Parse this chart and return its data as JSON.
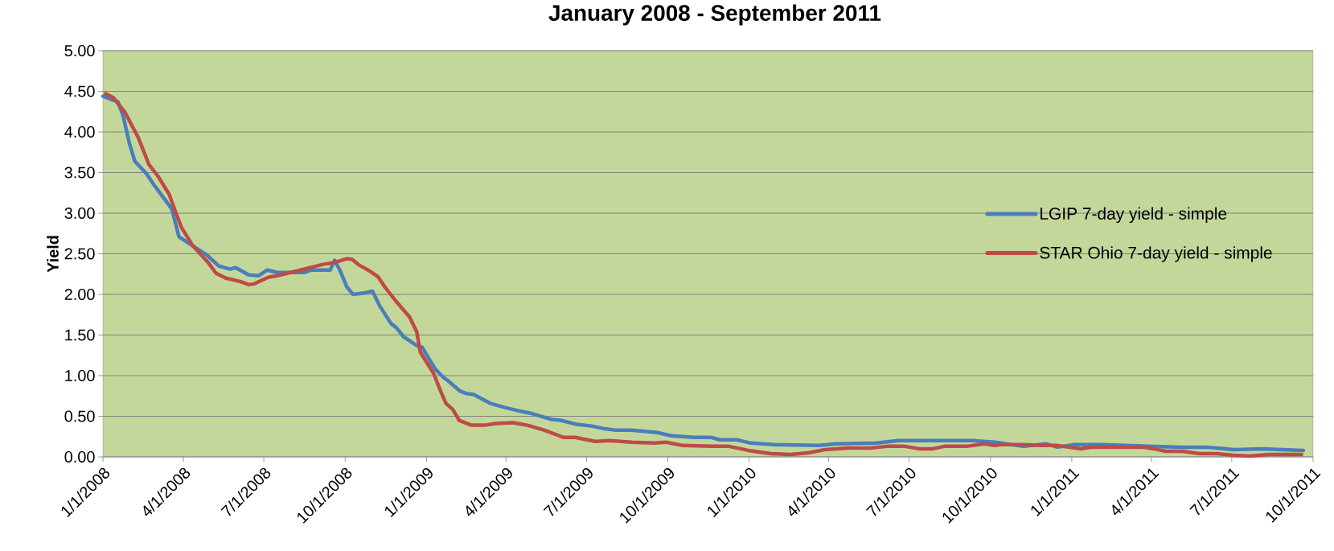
{
  "chart_data": {
    "type": "line",
    "title": "January 2008 - September 2011",
    "ylabel": "Yield",
    "xlim": [
      "2008-01-01",
      "2011-10-01"
    ],
    "xticks": [
      {
        "value": "2008-01-01",
        "label": "1/1/2008"
      },
      {
        "value": "2008-04-01",
        "label": "4/1/2008"
      },
      {
        "value": "2008-07-01",
        "label": "7/1/2008"
      },
      {
        "value": "2008-10-01",
        "label": "10/1/2008"
      },
      {
        "value": "2009-01-01",
        "label": "1/1/2009"
      },
      {
        "value": "2009-04-01",
        "label": "4/1/2009"
      },
      {
        "value": "2009-07-01",
        "label": "7/1/2009"
      },
      {
        "value": "2009-10-01",
        "label": "10/1/2009"
      },
      {
        "value": "2010-01-01",
        "label": "1/1/2010"
      },
      {
        "value": "2010-04-01",
        "label": "4/1/2010"
      },
      {
        "value": "2010-07-01",
        "label": "7/1/2010"
      },
      {
        "value": "2010-10-01",
        "label": "10/1/2010"
      },
      {
        "value": "2011-01-01",
        "label": "1/1/2011"
      },
      {
        "value": "2011-04-01",
        "label": "4/1/2011"
      },
      {
        "value": "2011-07-01",
        "label": "7/1/2011"
      },
      {
        "value": "2011-10-01",
        "label": "10/1/2011"
      }
    ],
    "ylim": [
      0,
      5
    ],
    "yticks": [
      {
        "value": 0,
        "label": "0.00"
      },
      {
        "value": 0.5,
        "label": "0.50"
      },
      {
        "value": 1,
        "label": "1.00"
      },
      {
        "value": 1.5,
        "label": "1.50"
      },
      {
        "value": 2,
        "label": "2.00"
      },
      {
        "value": 2.5,
        "label": "2.50"
      },
      {
        "value": 3,
        "label": "3.00"
      },
      {
        "value": 3.5,
        "label": "3.50"
      },
      {
        "value": 4,
        "label": "4.00"
      },
      {
        "value": 4.5,
        "label": "4.50"
      },
      {
        "value": 5,
        "label": "5.00"
      }
    ],
    "grid": "y",
    "legend": "right",
    "series": [
      {
        "name": "LGIP 7-day yield - simple",
        "color": "#4a7ebb",
        "x": [
          "2008-01-01",
          "2008-01-18",
          "2008-01-24",
          "2008-01-31",
          "2008-02-06",
          "2008-02-19",
          "2008-02-29",
          "2008-03-19",
          "2008-03-27",
          "2008-04-14",
          "2008-04-27",
          "2008-05-11",
          "2008-05-24",
          "2008-05-30",
          "2008-06-14",
          "2008-06-25",
          "2008-07-05",
          "2008-07-16",
          "2008-08-16",
          "2008-08-24",
          "2008-09-14",
          "2008-09-19",
          "2008-09-25",
          "2008-10-03",
          "2008-10-10",
          "2008-10-24",
          "2008-11-01",
          "2008-11-09",
          "2008-11-22",
          "2008-11-28",
          "2008-12-06",
          "2008-12-21",
          "2008-12-27",
          "2009-01-11",
          "2009-01-20",
          "2009-01-25",
          "2009-02-08",
          "2009-02-15",
          "2009-02-23",
          "2009-03-14",
          "2009-03-30",
          "2009-04-14",
          "2009-04-28",
          "2009-05-23",
          "2009-06-02",
          "2009-06-20",
          "2009-07-07",
          "2009-07-20",
          "2009-08-02",
          "2009-08-21",
          "2009-09-19",
          "2009-10-05",
          "2009-10-31",
          "2009-11-19",
          "2009-11-29",
          "2009-12-18",
          "2010-01-03",
          "2010-01-29",
          "2010-03-21",
          "2010-04-10",
          "2010-05-25",
          "2010-06-19",
          "2010-09-11",
          "2010-10-06",
          "2010-11-08",
          "2010-12-03",
          "2010-12-16",
          "2011-01-04",
          "2011-02-06",
          "2011-03-29",
          "2011-05-06",
          "2011-06-01",
          "2011-06-14",
          "2011-07-03",
          "2011-08-04",
          "2011-09-20"
        ],
        "values": [
          4.44,
          4.37,
          4.19,
          3.86,
          3.64,
          3.49,
          3.33,
          3.05,
          2.71,
          2.58,
          2.49,
          2.35,
          2.31,
          2.33,
          2.24,
          2.23,
          2.3,
          2.27,
          2.27,
          2.3,
          2.3,
          2.42,
          2.3,
          2.09,
          2.0,
          2.02,
          2.04,
          1.86,
          1.64,
          1.59,
          1.48,
          1.37,
          1.35,
          1.08,
          0.98,
          0.94,
          0.81,
          0.78,
          0.77,
          0.66,
          0.61,
          0.57,
          0.54,
          0.46,
          0.45,
          0.4,
          0.38,
          0.35,
          0.33,
          0.33,
          0.3,
          0.26,
          0.24,
          0.24,
          0.21,
          0.21,
          0.17,
          0.15,
          0.14,
          0.16,
          0.17,
          0.2,
          0.2,
          0.18,
          0.13,
          0.16,
          0.12,
          0.15,
          0.15,
          0.13,
          0.12,
          0.12,
          0.11,
          0.09,
          0.1,
          0.08
        ]
      },
      {
        "name": "STAR Ohio 7-day yield - simple",
        "color": "#be4b48",
        "x": [
          "2008-01-04",
          "2008-01-13",
          "2008-01-18",
          "2008-01-26",
          "2008-02-10",
          "2008-02-22",
          "2008-03-03",
          "2008-03-16",
          "2008-03-22",
          "2008-03-30",
          "2008-04-11",
          "2008-04-30",
          "2008-05-08",
          "2008-05-19",
          "2008-06-04",
          "2008-06-14",
          "2008-06-20",
          "2008-07-06",
          "2008-07-16",
          "2008-08-08",
          "2008-09-06",
          "2008-09-18",
          "2008-10-03",
          "2008-10-09",
          "2008-10-17",
          "2008-10-27",
          "2008-11-07",
          "2008-11-15",
          "2008-11-28",
          "2008-12-13",
          "2008-12-21",
          "2008-12-25",
          "2009-01-09",
          "2009-01-17",
          "2009-01-23",
          "2009-01-31",
          "2009-02-07",
          "2009-02-21",
          "2009-03-08",
          "2009-03-20",
          "2009-04-09",
          "2009-04-25",
          "2009-05-14",
          "2009-06-05",
          "2009-06-18",
          "2009-07-11",
          "2009-07-27",
          "2009-08-21",
          "2009-09-16",
          "2009-09-29",
          "2009-10-18",
          "2009-11-19",
          "2009-12-09",
          "2009-12-31",
          "2010-01-26",
          "2010-02-17",
          "2010-03-09",
          "2010-03-28",
          "2010-04-22",
          "2010-05-18",
          "2010-06-06",
          "2010-06-26",
          "2010-07-12",
          "2010-07-28",
          "2010-08-10",
          "2010-09-04",
          "2010-09-24",
          "2010-10-06",
          "2010-10-13",
          "2010-11-08",
          "2010-11-27",
          "2010-12-16",
          "2011-01-11",
          "2011-01-24",
          "2011-03-03",
          "2011-03-22",
          "2011-04-04",
          "2011-04-17",
          "2011-05-06",
          "2011-05-26",
          "2011-06-14",
          "2011-07-03",
          "2011-07-22",
          "2011-08-11",
          "2011-09-18"
        ],
        "values": [
          4.47,
          4.42,
          4.35,
          4.24,
          3.93,
          3.6,
          3.46,
          3.23,
          3.05,
          2.82,
          2.61,
          2.38,
          2.26,
          2.2,
          2.16,
          2.12,
          2.13,
          2.21,
          2.23,
          2.29,
          2.37,
          2.39,
          2.44,
          2.43,
          2.36,
          2.3,
          2.22,
          2.09,
          1.91,
          1.72,
          1.54,
          1.29,
          1.03,
          0.81,
          0.66,
          0.58,
          0.45,
          0.39,
          0.39,
          0.41,
          0.42,
          0.39,
          0.33,
          0.24,
          0.24,
          0.19,
          0.2,
          0.18,
          0.17,
          0.18,
          0.14,
          0.13,
          0.13,
          0.08,
          0.04,
          0.03,
          0.05,
          0.09,
          0.11,
          0.11,
          0.13,
          0.13,
          0.1,
          0.1,
          0.13,
          0.13,
          0.16,
          0.14,
          0.15,
          0.15,
          0.14,
          0.14,
          0.1,
          0.12,
          0.12,
          0.12,
          0.1,
          0.07,
          0.07,
          0.04,
          0.04,
          0.02,
          0.01,
          0.03,
          0.03
        ]
      }
    ]
  }
}
